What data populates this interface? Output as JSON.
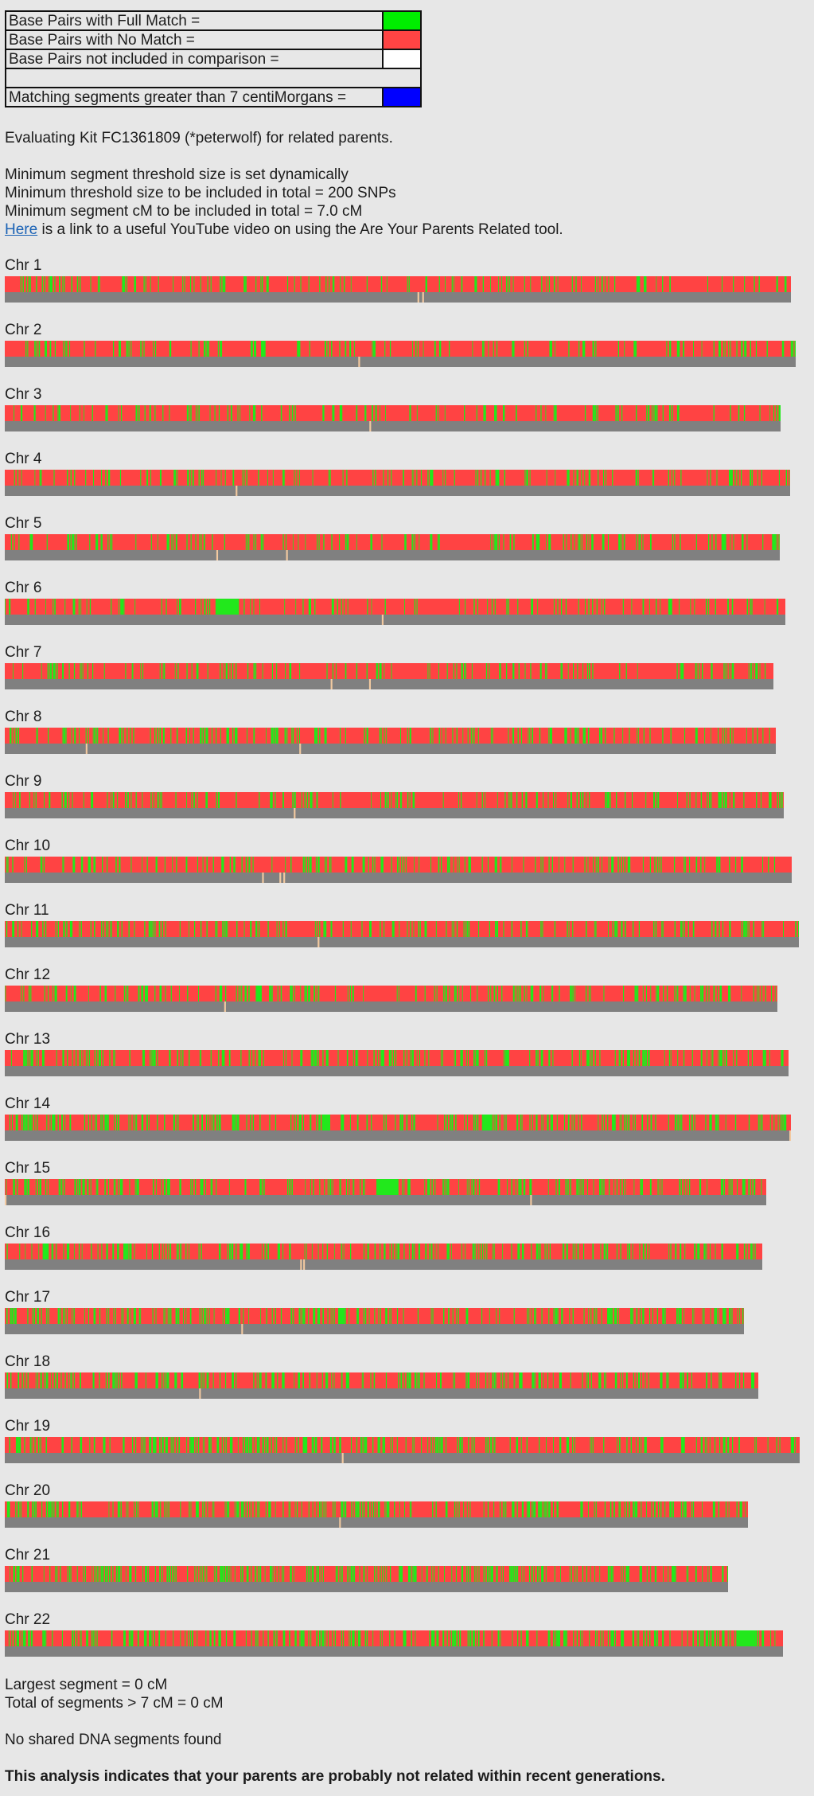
{
  "legend": [
    {
      "label": "Base Pairs with Full Match =",
      "color": "#00ee00"
    },
    {
      "label": "Base Pairs with No Match =",
      "color": "#ff4444"
    },
    {
      "label": "Base Pairs not included in comparison =",
      "color": "#ffffff"
    },
    {
      "label": "",
      "color": "#ffffff"
    },
    {
      "label": "Matching segments greater than 7 centiMorgans =",
      "color": "#0000ff"
    }
  ],
  "colors": {
    "match": "#22e81c",
    "nomatch": "#ff4343",
    "excluded_bar": "#808080",
    "excluded_tick": "#f2c9a0",
    "segment": "#0000ff"
  },
  "header": {
    "evaluating": "Evaluating Kit FC1361809 (*peterwolf) for related parents.",
    "threshold_line": "Minimum segment threshold size is set dynamically",
    "snp_line": "Minimum threshold size to be included in total = 200 SNPs",
    "cm_line": "Minimum segment cM to be included in total = 7.0 cM",
    "link_text": "Here",
    "link_rest": " is a link to a useful YouTube video on using the Are Your Parents Related tool."
  },
  "chromosomes": [
    {
      "label": "Chr 1",
      "length": 988,
      "seed": 11,
      "density": 0.35,
      "match_blocks": [],
      "gaps": [
        0.525,
        0.531
      ]
    },
    {
      "label": "Chr 2",
      "length": 994,
      "seed": 23,
      "density": 0.35,
      "match_blocks": [],
      "gaps": [
        0.447
      ]
    },
    {
      "label": "Chr 3",
      "length": 975,
      "seed": 37,
      "density": 0.4,
      "match_blocks": [],
      "gaps": [
        0.47
      ]
    },
    {
      "label": "Chr 4",
      "length": 987,
      "seed": 41,
      "density": 0.35,
      "match_blocks": [
        [
          0.922,
          0.927
        ]
      ],
      "gaps": [
        0.294
      ]
    },
    {
      "label": "Chr 5",
      "length": 974,
      "seed": 53,
      "density": 0.4,
      "match_blocks": [
        [
          0.99,
          0.995
        ]
      ],
      "gaps": [
        0.273,
        0.363
      ]
    },
    {
      "label": "Chr 6",
      "length": 981,
      "seed": 67,
      "density": 0.3,
      "match_blocks": [
        [
          0.27,
          0.3
        ]
      ],
      "gaps": [
        0.483
      ]
    },
    {
      "label": "Chr 7",
      "length": 966,
      "seed": 71,
      "density": 0.4,
      "match_blocks": [],
      "gaps": [
        0.424,
        0.474
      ]
    },
    {
      "label": "Chr 8",
      "length": 969,
      "seed": 83,
      "density": 0.55,
      "match_blocks": [],
      "gaps": [
        0.105,
        0.382
      ]
    },
    {
      "label": "Chr 9",
      "length": 979,
      "seed": 97,
      "density": 0.5,
      "match_blocks": [],
      "gaps": [
        0.371
      ]
    },
    {
      "label": "Chr 10",
      "length": 989,
      "seed": 101,
      "density": 0.55,
      "match_blocks": [],
      "gaps": [
        0.327,
        0.349,
        0.354
      ]
    },
    {
      "label": "Chr 11",
      "length": 998,
      "seed": 113,
      "density": 0.55,
      "match_blocks": [],
      "gaps": [
        0.394
      ]
    },
    {
      "label": "Chr 12",
      "length": 971,
      "seed": 127,
      "density": 0.6,
      "match_blocks": [
        [
          0.325,
          0.332
        ]
      ],
      "gaps": [
        0.284
      ]
    },
    {
      "label": "Chr 13",
      "length": 985,
      "seed": 131,
      "density": 0.65,
      "match_blocks": [],
      "gaps": []
    },
    {
      "label": "Chr 14",
      "length": 988,
      "seed": 149,
      "density": 0.8,
      "match_blocks": [
        [
          0.404,
          0.414
        ],
        [
          0.607,
          0.62
        ]
      ],
      "gaps": [
        0.998
      ]
    },
    {
      "label": "Chr 15",
      "length": 957,
      "seed": 151,
      "density": 0.75,
      "match_blocks": [
        [
          0.488,
          0.517
        ]
      ],
      "gaps": [
        0.0,
        0.69
      ]
    },
    {
      "label": "Chr 16",
      "length": 952,
      "seed": 163,
      "density": 0.7,
      "match_blocks": [
        [
          0.05,
          0.058
        ]
      ],
      "gaps": [
        0.39,
        0.394
      ]
    },
    {
      "label": "Chr 17",
      "length": 929,
      "seed": 173,
      "density": 0.8,
      "match_blocks": [
        [
          0.451,
          0.46
        ]
      ],
      "gaps": [
        0.32
      ]
    },
    {
      "label": "Chr 18",
      "length": 947,
      "seed": 181,
      "density": 0.7,
      "match_blocks": [],
      "gaps": [
        0.258
      ]
    },
    {
      "label": "Chr 19",
      "length": 999,
      "seed": 191,
      "density": 0.8,
      "match_blocks": [],
      "gaps": [
        0.424
      ]
    },
    {
      "label": "Chr 20",
      "length": 934,
      "seed": 197,
      "density": 0.8,
      "match_blocks": [],
      "gaps": [
        0.45
      ]
    },
    {
      "label": "Chr 21",
      "length": 909,
      "seed": 211,
      "density": 1.0,
      "match_blocks": [],
      "gaps": []
    },
    {
      "label": "Chr 22",
      "length": 978,
      "seed": 223,
      "density": 1.0,
      "match_blocks": [
        [
          0.94,
          0.965
        ]
      ],
      "gaps": []
    }
  ],
  "summary": {
    "largest": "Largest segment = 0 cM",
    "total": "Total of segments > 7 cM = 0 cM",
    "none_found": "No shared DNA segments found",
    "conclusion": "This analysis indicates that your parents are probably not related within recent generations."
  }
}
